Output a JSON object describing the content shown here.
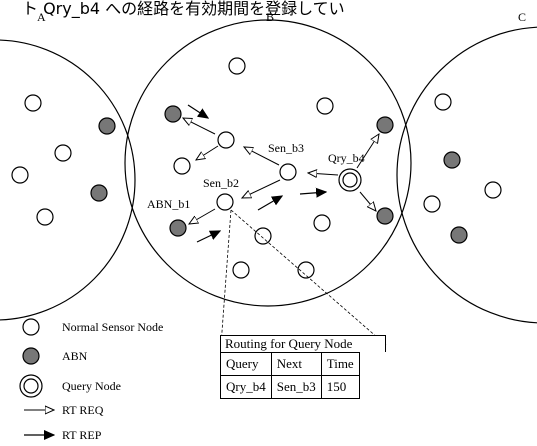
{
  "top_text": "ト Qry_b4 への経路を有効期間を登録してい",
  "regions": {
    "a": "A",
    "b": "B",
    "c": "C"
  },
  "node_labels": {
    "sen_b3": "Sen_b3",
    "qry_b4": "Qry_b4",
    "sen_b2": "Sen_b2",
    "abn_b1": "ABN_b1"
  },
  "legend": {
    "normal": "Normal Sensor Node",
    "abn": "ABN",
    "query": "Query Node",
    "rt_req": "RT REQ",
    "rt_rep": "RT REP"
  },
  "routing_table": {
    "title": "Routing for Query Node",
    "headers": [
      "Query",
      "Next",
      "Time"
    ],
    "rows": [
      [
        "Qry_b4",
        "Sen_b3",
        "150"
      ]
    ]
  },
  "colors": {
    "abn_fill": "#777777",
    "stroke": "#000000",
    "background": "#ffffff"
  }
}
